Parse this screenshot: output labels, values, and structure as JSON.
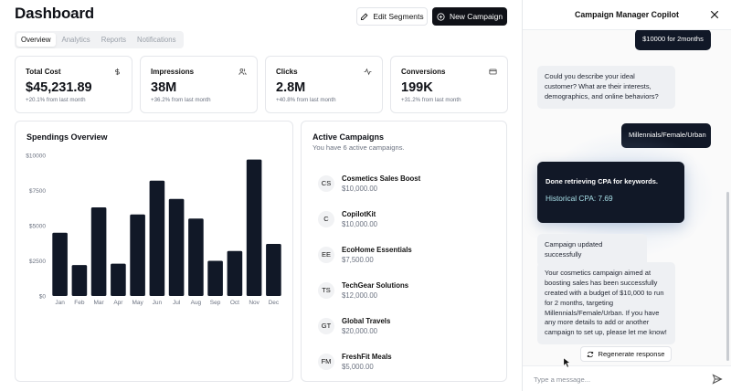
{
  "header": {
    "title": "Dashboard",
    "edit_segments_label": "Edit Segments",
    "new_campaign_label": "New Campaign"
  },
  "tabs": [
    {
      "label": "Overview",
      "active": true
    },
    {
      "label": "Analytics",
      "active": false
    },
    {
      "label": "Reports",
      "active": false
    },
    {
      "label": "Notifications",
      "active": false
    }
  ],
  "stats": [
    {
      "label": "Total Cost",
      "value": "$45,231.89",
      "change": "+20.1% from last month",
      "icon": "dollar-icon"
    },
    {
      "label": "Impressions",
      "value": "38M",
      "change": "+36.2% from last month",
      "icon": "users-icon"
    },
    {
      "label": "Clicks",
      "value": "2.8M",
      "change": "+40.8% from last month",
      "icon": "activity-icon"
    },
    {
      "label": "Conversions",
      "value": "199K",
      "change": "+31.2% from last month",
      "icon": "credit-card-icon"
    }
  ],
  "spendings": {
    "title": "Spendings Overview"
  },
  "chart_data": {
    "type": "bar",
    "categories": [
      "Jan",
      "Feb",
      "Mar",
      "Apr",
      "May",
      "Jun",
      "Jul",
      "Aug",
      "Sep",
      "Oct",
      "Nov",
      "Dec"
    ],
    "values": [
      4500,
      2200,
      6300,
      2300,
      5800,
      8200,
      6900,
      5500,
      2500,
      3200,
      9700,
      3700
    ],
    "yticks": [
      "$0",
      "$2500",
      "$5000",
      "$7500",
      "$10000"
    ],
    "ylim": [
      0,
      10000
    ],
    "color": "#111827",
    "grid": false
  },
  "campaigns": {
    "title": "Active Campaigns",
    "subtitle": "You have 6 active campaigns.",
    "items": [
      {
        "initials": "CS",
        "name": "Cosmetics Sales Boost",
        "budget": "$10,000.00"
      },
      {
        "initials": "C",
        "name": "CopilotKit",
        "budget": "$10,000.00"
      },
      {
        "initials": "EE",
        "name": "EcoHome Essentials",
        "budget": "$7,500.00"
      },
      {
        "initials": "TS",
        "name": "TechGear Solutions",
        "budget": "$12,000.00"
      },
      {
        "initials": "GT",
        "name": "Global Travels",
        "budget": "$20,000.00"
      },
      {
        "initials": "FM",
        "name": "FreshFit Meals",
        "budget": "$5,000.00"
      }
    ]
  },
  "copilot": {
    "title": "Campaign Manager Copilot",
    "messages": {
      "user_budget": "$10000 for 2months",
      "ai_question": "Could you describe your ideal customer? What are their interests, demographics, and online behaviors?",
      "user_segment": "Millennials/Female/Urban",
      "cpa_title": "Done retrieving CPA for keywords.",
      "cpa_value": "Historical CPA: 7.69",
      "ai_updated": "Campaign updated successfully",
      "ai_summary": "Your cosmetics campaign aimed at boosting sales has been successfully created with a budget of $10,000 to run for 2 months, targeting Millennials/Female/Urban. If you have any more details to add or another campaign to set up, please let me know!"
    },
    "regenerate_label": "Regenerate response",
    "input_placeholder": "Type a message..."
  }
}
